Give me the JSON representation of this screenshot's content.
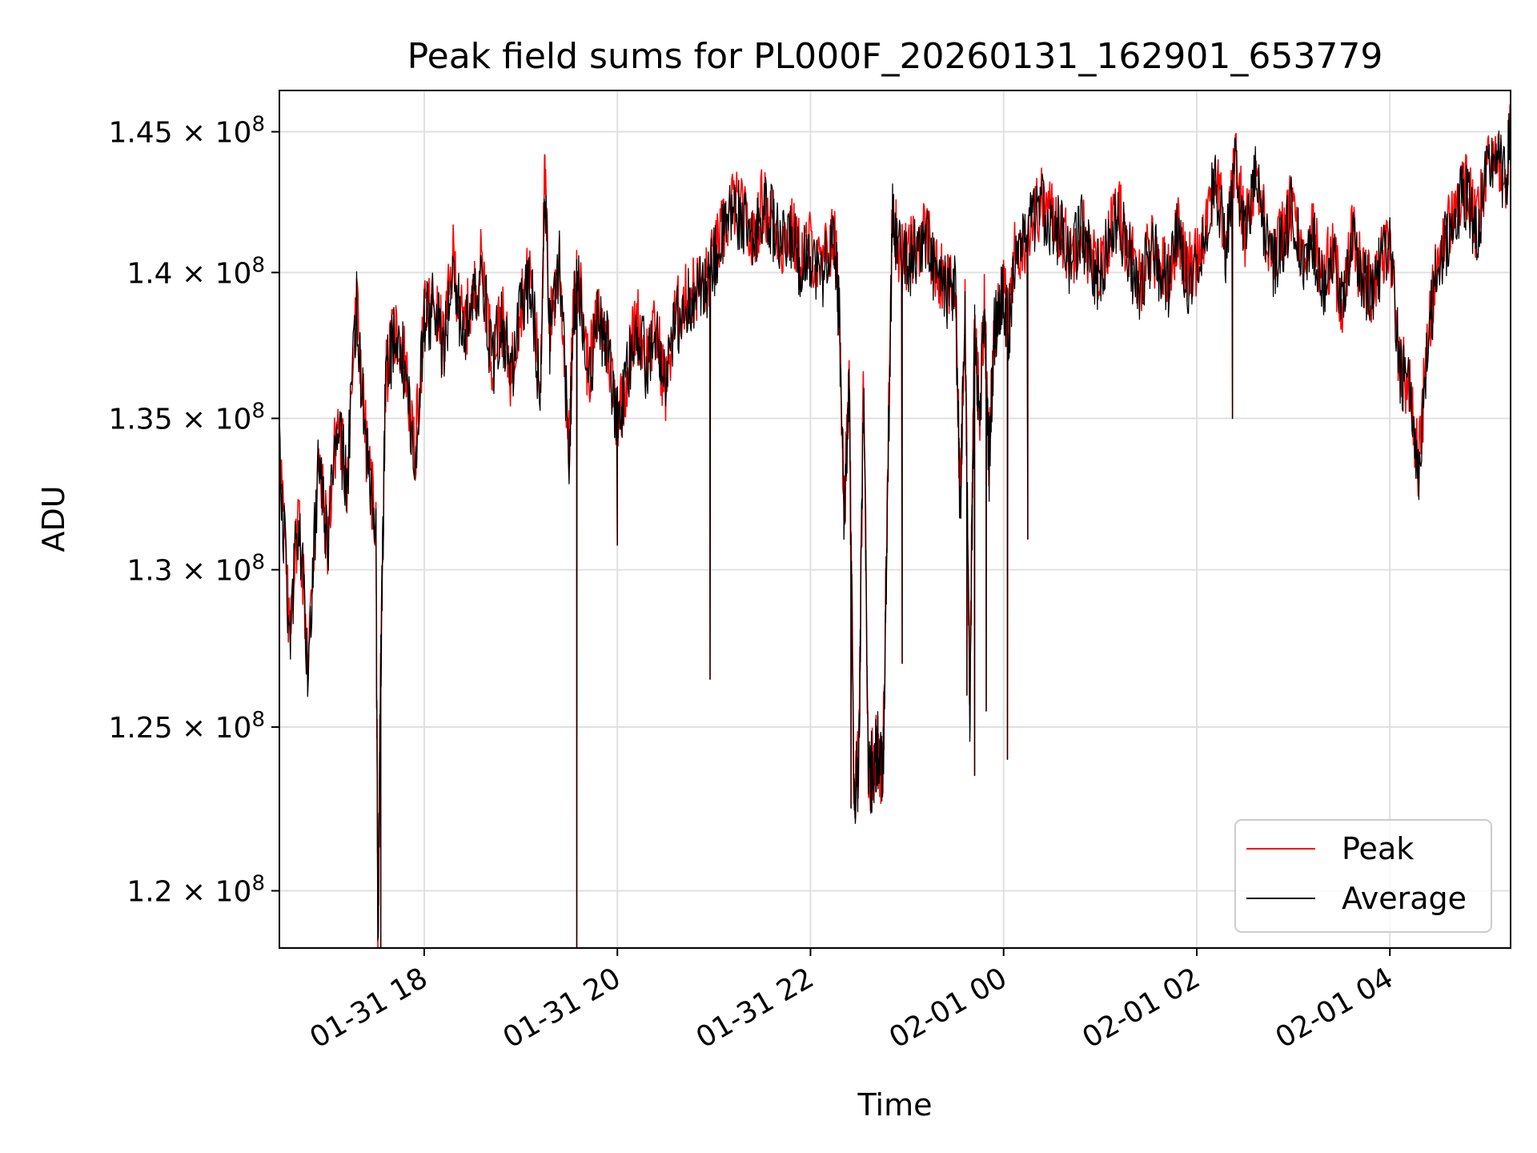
{
  "chart_data": {
    "type": "line",
    "title": "Peak field sums for PL000F_20260131_162901_653779",
    "xlabel": "Time",
    "ylabel": "ADU",
    "x_unit": "hours since 2026-01-31 00:00",
    "xlim": [
      16.5,
      29.25
    ],
    "ylim": [
      118300000,
      146500000
    ],
    "y_scale": "log",
    "grid": true,
    "legend_position": "lower right",
    "x_ticks": [
      {
        "value": 18,
        "label": "01-31 18"
      },
      {
        "value": 20,
        "label": "01-31 20"
      },
      {
        "value": 22,
        "label": "01-31 22"
      },
      {
        "value": 24,
        "label": "02-01 00"
      },
      {
        "value": 26,
        "label": "02-01 02"
      },
      {
        "value": 28,
        "label": "02-01 04"
      }
    ],
    "y_ticks": [
      {
        "value": 120000000,
        "mantissa": "1.2"
      },
      {
        "value": 125000000,
        "mantissa": "1.25"
      },
      {
        "value": 130000000,
        "mantissa": "1.3"
      },
      {
        "value": 135000000,
        "mantissa": "1.35"
      },
      {
        "value": 140000000,
        "mantissa": "1.4"
      },
      {
        "value": 145000000,
        "mantissa": "1.45"
      }
    ],
    "tick_times_sign": "×",
    "tick_base": "10",
    "tick_exponent": "8",
    "series": [
      {
        "name": "Peak",
        "color": "#ff0000",
        "x": [
          16.5,
          16.6,
          16.7,
          16.8,
          16.9,
          17.0,
          17.1,
          17.2,
          17.3,
          17.4,
          17.5,
          17.52,
          17.55,
          17.6,
          17.7,
          17.8,
          17.9,
          18.0,
          18.1,
          18.2,
          18.3,
          18.4,
          18.5,
          18.6,
          18.7,
          18.8,
          18.9,
          19.0,
          19.1,
          19.2,
          19.25,
          19.3,
          19.4,
          19.5,
          19.55,
          19.6,
          19.7,
          19.8,
          19.9,
          20.0,
          20.1,
          20.2,
          20.3,
          20.4,
          20.5,
          20.6,
          20.7,
          20.8,
          20.9,
          21.0,
          21.1,
          21.2,
          21.3,
          21.4,
          21.5,
          21.6,
          21.7,
          21.8,
          21.9,
          22.0,
          22.1,
          22.2,
          22.25,
          22.3,
          22.35,
          22.4,
          22.45,
          22.5,
          22.55,
          22.6,
          22.65,
          22.7,
          22.75,
          22.8,
          22.85,
          22.9,
          23.0,
          23.1,
          23.2,
          23.3,
          23.4,
          23.5,
          23.55,
          23.6,
          23.65,
          23.7,
          23.75,
          23.8,
          23.85,
          23.9,
          23.95,
          24.0,
          24.05,
          24.1,
          24.2,
          24.3,
          24.4,
          24.5,
          24.6,
          24.7,
          24.8,
          24.9,
          25.0,
          25.1,
          25.2,
          25.3,
          25.4,
          25.5,
          25.6,
          25.7,
          25.8,
          25.9,
          26.0,
          26.1,
          26.2,
          26.3,
          26.4,
          26.5,
          26.6,
          26.7,
          26.8,
          26.9,
          27.0,
          27.1,
          27.2,
          27.3,
          27.4,
          27.5,
          27.6,
          27.7,
          27.8,
          27.9,
          28.0,
          28.1,
          28.2,
          28.3,
          28.4,
          28.5,
          28.6,
          28.7,
          28.8,
          28.9,
          29.0,
          29.1,
          29.2,
          29.25
        ],
        "values": [
          134500000,
          128000000,
          132000000,
          127000000,
          133500000,
          131000000,
          135000000,
          133000000,
          139000000,
          134000000,
          131500000,
          118300000,
          127000000,
          136500000,
          138000000,
          137000000,
          133500000,
          138500000,
          139000000,
          137500000,
          140500000,
          138000000,
          139000000,
          140500000,
          137000000,
          138500000,
          136500000,
          139000000,
          140000000,
          136000000,
          143500000,
          138000000,
          140500000,
          134000000,
          139000000,
          140000000,
          136500000,
          138500000,
          137500000,
          135000000,
          136500000,
          138500000,
          137000000,
          138000000,
          136000000,
          138500000,
          139000000,
          139500000,
          139500000,
          140500000,
          141500000,
          142500000,
          142000000,
          141000000,
          142500000,
          142000000,
          141000000,
          141500000,
          140500000,
          141000000,
          140000000,
          141000000,
          141200000,
          138500000,
          132000000,
          136000000,
          123000000,
          124000000,
          136500000,
          123500000,
          124000000,
          124500000,
          123500000,
          133000000,
          142500000,
          141000000,
          140500000,
          141000000,
          141500000,
          140000000,
          139500000,
          139500000,
          132000000,
          139000000,
          125500000,
          138500000,
          135000000,
          139000000,
          133500000,
          138000000,
          139000000,
          139500000,
          138000000,
          140500000,
          141000000,
          142000000,
          142500000,
          142000000,
          141500000,
          140500000,
          141800000,
          140500000,
          140000000,
          141500000,
          142000000,
          140800000,
          139500000,
          141000000,
          140500000,
          139800000,
          141500000,
          140000000,
          140500000,
          142000000,
          143500000,
          141000000,
          144000000,
          141500000,
          143500000,
          141800000,
          140500000,
          141500000,
          142500000,
          140000000,
          141500000,
          139800000,
          140800000,
          139000000,
          141500000,
          140000000,
          139500000,
          140500000,
          141000000,
          137000000,
          136000000,
          133500000,
          138000000,
          140500000,
          141500000,
          142500000,
          143000000,
          141500000,
          143500000,
          144500000,
          143200000,
          145500000
        ],
        "dips": [
          {
            "x": 17.55,
            "value": 118300000
          },
          {
            "x": 19.58,
            "value": 118300000
          },
          {
            "x": 20.96,
            "value": 126500000
          },
          {
            "x": 20.0,
            "value": 130800000
          },
          {
            "x": 22.42,
            "value": 122500000
          },
          {
            "x": 22.68,
            "value": 123000000
          },
          {
            "x": 22.95,
            "value": 127000000
          },
          {
            "x": 23.62,
            "value": 126000000
          },
          {
            "x": 23.7,
            "value": 123500000
          },
          {
            "x": 23.82,
            "value": 125500000
          },
          {
            "x": 24.04,
            "value": 124000000
          },
          {
            "x": 24.25,
            "value": 131000000
          },
          {
            "x": 26.37,
            "value": 135000000
          },
          {
            "x": 28.27,
            "value": 133000000
          }
        ]
      },
      {
        "name": "Average",
        "color": "#000000",
        "x": [
          16.5,
          16.6,
          16.7,
          16.8,
          16.9,
          17.0,
          17.1,
          17.2,
          17.3,
          17.4,
          17.5,
          17.52,
          17.55,
          17.6,
          17.7,
          17.8,
          17.9,
          18.0,
          18.1,
          18.2,
          18.3,
          18.4,
          18.5,
          18.6,
          18.7,
          18.8,
          18.9,
          19.0,
          19.1,
          19.2,
          19.25,
          19.3,
          19.4,
          19.5,
          19.55,
          19.6,
          19.7,
          19.8,
          19.9,
          20.0,
          20.1,
          20.2,
          20.3,
          20.4,
          20.5,
          20.6,
          20.7,
          20.8,
          20.9,
          21.0,
          21.1,
          21.2,
          21.3,
          21.4,
          21.5,
          21.6,
          21.7,
          21.8,
          21.9,
          22.0,
          22.1,
          22.2,
          22.25,
          22.3,
          22.35,
          22.4,
          22.45,
          22.5,
          22.55,
          22.6,
          22.65,
          22.7,
          22.75,
          22.8,
          22.85,
          22.9,
          23.0,
          23.1,
          23.2,
          23.3,
          23.4,
          23.5,
          23.55,
          23.6,
          23.65,
          23.7,
          23.75,
          23.8,
          23.85,
          23.9,
          23.95,
          24.0,
          24.05,
          24.1,
          24.2,
          24.3,
          24.4,
          24.5,
          24.6,
          24.7,
          24.8,
          24.9,
          25.0,
          25.1,
          25.2,
          25.3,
          25.4,
          25.5,
          25.6,
          25.7,
          25.8,
          25.9,
          26.0,
          26.1,
          26.2,
          26.3,
          26.4,
          26.5,
          26.6,
          26.7,
          26.8,
          26.9,
          27.0,
          27.1,
          27.2,
          27.3,
          27.4,
          27.5,
          27.6,
          27.7,
          27.8,
          27.9,
          28.0,
          28.1,
          28.2,
          28.3,
          28.4,
          28.5,
          28.6,
          28.7,
          28.8,
          28.9,
          29.0,
          29.1,
          29.2,
          29.25
        ],
        "values": [
          134300000,
          127800000,
          131800000,
          126800000,
          133300000,
          130800000,
          134800000,
          132800000,
          138800000,
          133800000,
          131300000,
          118300000,
          126800000,
          136300000,
          137800000,
          136800000,
          133300000,
          138300000,
          138800000,
          137300000,
          140300000,
          137800000,
          138800000,
          140300000,
          136800000,
          138300000,
          136300000,
          138800000,
          139800000,
          135800000,
          143300000,
          137800000,
          140300000,
          133800000,
          138800000,
          139800000,
          136300000,
          138300000,
          137300000,
          134800000,
          136300000,
          138300000,
          136800000,
          137800000,
          135800000,
          138300000,
          138800000,
          139300000,
          139300000,
          140300000,
          141300000,
          142300000,
          141800000,
          140800000,
          142300000,
          141800000,
          140800000,
          141300000,
          140300000,
          140800000,
          139800000,
          140800000,
          141000000,
          138300000,
          131800000,
          135800000,
          122800000,
          123800000,
          136300000,
          123300000,
          123800000,
          124300000,
          123300000,
          132800000,
          142300000,
          140800000,
          140300000,
          140800000,
          141300000,
          139800000,
          139300000,
          139300000,
          131800000,
          138800000,
          125300000,
          138300000,
          134800000,
          138800000,
          133300000,
          137800000,
          138800000,
          139300000,
          137800000,
          140300000,
          140800000,
          141800000,
          142300000,
          141800000,
          141300000,
          140300000,
          141600000,
          140300000,
          139800000,
          141300000,
          141800000,
          140600000,
          139300000,
          140800000,
          140300000,
          139600000,
          141300000,
          139800000,
          140300000,
          141800000,
          143300000,
          140800000,
          143800000,
          141300000,
          143300000,
          141600000,
          140300000,
          141300000,
          142300000,
          139800000,
          141300000,
          139600000,
          140600000,
          138800000,
          141300000,
          139800000,
          139300000,
          140300000,
          140800000,
          136800000,
          135800000,
          133300000,
          137800000,
          140300000,
          141300000,
          142300000,
          142800000,
          141300000,
          143300000,
          144300000,
          143000000,
          145300000
        ],
        "dips": [
          {
            "x": 17.55,
            "value": 118300000
          },
          {
            "x": 19.58,
            "value": 118300000
          },
          {
            "x": 20.96,
            "value": 126500000
          },
          {
            "x": 20.0,
            "value": 130800000
          },
          {
            "x": 22.42,
            "value": 122500000
          },
          {
            "x": 22.68,
            "value": 123000000
          },
          {
            "x": 22.95,
            "value": 127000000
          },
          {
            "x": 23.62,
            "value": 126000000
          },
          {
            "x": 23.7,
            "value": 123500000
          },
          {
            "x": 23.82,
            "value": 125500000
          },
          {
            "x": 24.04,
            "value": 124000000
          },
          {
            "x": 24.25,
            "value": 131000000
          },
          {
            "x": 26.37,
            "value": 135000000
          },
          {
            "x": 28.27,
            "value": 133000000
          }
        ]
      }
    ]
  }
}
